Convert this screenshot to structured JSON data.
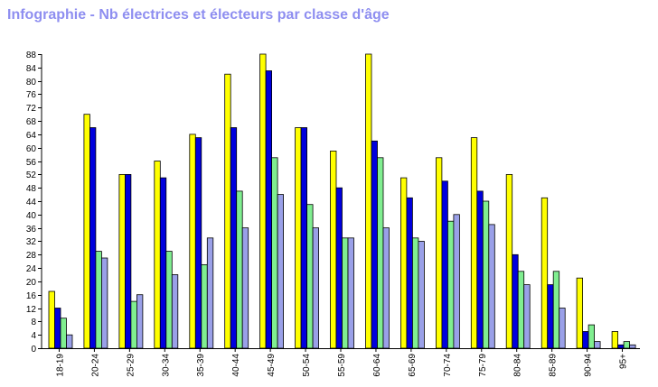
{
  "title": "Infographie - Nb électrices et électeurs par classe d'âge",
  "chart_data": {
    "type": "bar",
    "title": "Infographie - Nb électrices et électeurs par classe d'âge",
    "categories": [
      "18-19",
      "20-24",
      "25-29",
      "30-34",
      "35-39",
      "40-44",
      "45-49",
      "50-54",
      "55-59",
      "60-64",
      "65-69",
      "70-74",
      "75-79",
      "80-84",
      "85-89",
      "90-94",
      "95+"
    ],
    "series": [
      {
        "color": "#ffff00",
        "values": [
          17,
          70,
          52,
          56,
          64,
          82,
          88,
          66,
          59,
          88,
          51,
          57,
          63,
          52,
          45,
          21,
          5
        ]
      },
      {
        "color": "#0000dd",
        "values": [
          12,
          66,
          52,
          51,
          63,
          66,
          83,
          66,
          48,
          62,
          45,
          50,
          47,
          28,
          19,
          5,
          1
        ]
      },
      {
        "color": "#80ee90",
        "values": [
          9,
          29,
          14,
          29,
          25,
          47,
          57,
          43,
          33,
          57,
          33,
          38,
          44,
          23,
          23,
          7,
          2
        ]
      },
      {
        "color": "#9aa0e8",
        "values": [
          4,
          27,
          16,
          22,
          33,
          36,
          46,
          36,
          33,
          36,
          32,
          40,
          37,
          19,
          12,
          2,
          1
        ]
      }
    ],
    "yticks": [
      0,
      4,
      8,
      12,
      16,
      20,
      24,
      28,
      32,
      36,
      40,
      44,
      48,
      52,
      56,
      60,
      64,
      68,
      72,
      76,
      80,
      84,
      88
    ],
    "ylim": [
      0,
      88
    ],
    "grid": false,
    "legend": "none"
  }
}
